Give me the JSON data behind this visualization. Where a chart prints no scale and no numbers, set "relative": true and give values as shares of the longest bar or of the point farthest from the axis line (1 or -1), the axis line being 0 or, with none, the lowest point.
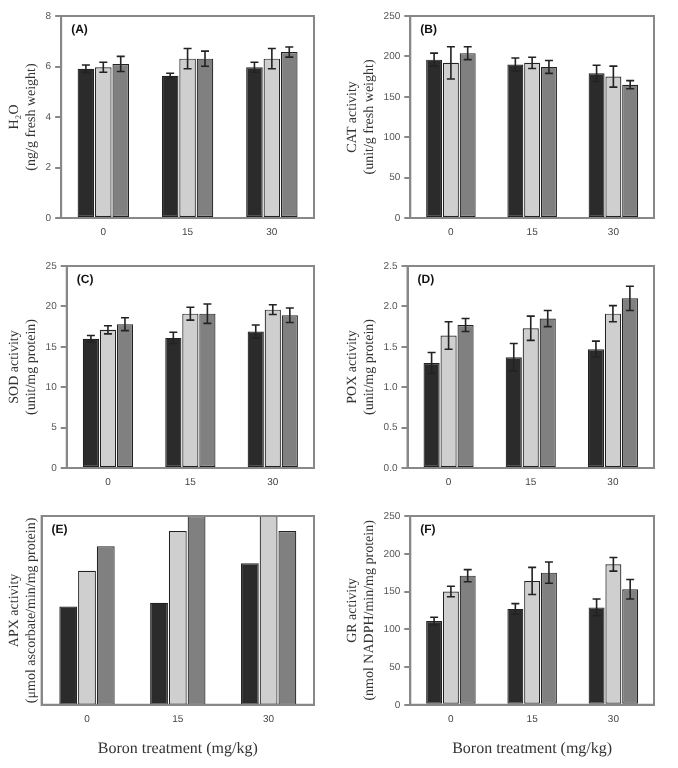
{
  "chart_data": [
    {
      "type": "bar",
      "ylabel": "H₂O\n(ng/g fresh weight)",
      "annotations": [
        "(A)"
      ],
      "categories": [
        "0",
        "15",
        "30"
      ],
      "ylim": [
        0,
        8
      ],
      "yticks": [
        0,
        2,
        4,
        6,
        8
      ],
      "grid": false,
      "legend": false,
      "series": [
        {
          "color": "#2b2b2b",
          "values": [
            5.91,
            5.63,
            5.97
          ],
          "errors": [
            0.15,
            0.1,
            0.2
          ]
        },
        {
          "color": "#cfcfcf",
          "values": [
            5.97,
            6.31,
            6.31
          ],
          "errors": [
            0.2,
            0.4,
            0.4
          ]
        },
        {
          "color": "#808080",
          "values": [
            6.1,
            6.31,
            6.57
          ],
          "errors": [
            0.3,
            0.3,
            0.2
          ]
        }
      ]
    },
    {
      "type": "bar",
      "ylabel": "CAT activity\n(unit/g fresh weight)",
      "annotations": [
        "(B)"
      ],
      "categories": [
        "0",
        "15",
        "30"
      ],
      "ylim": [
        0,
        250
      ],
      "yticks": [
        0,
        50,
        100,
        150,
        200,
        250
      ],
      "grid": false,
      "legend": false,
      "series": [
        {
          "color": "#2b2b2b",
          "values": [
            196,
            190,
            179
          ],
          "errors": [
            8,
            8,
            10
          ]
        },
        {
          "color": "#cfcfcf",
          "values": [
            192,
            192,
            175
          ],
          "errors": [
            20,
            7,
            13
          ]
        },
        {
          "color": "#808080",
          "values": [
            204,
            187,
            165
          ],
          "errors": [
            8,
            8,
            5
          ]
        }
      ]
    },
    {
      "type": "bar",
      "ylabel": "SOD activity\n(unit/mg protein)",
      "annotations": [
        "(C)"
      ],
      "categories": [
        "0",
        "15",
        "30"
      ],
      "ylim": [
        0,
        25
      ],
      "yticks": [
        0,
        5,
        10,
        15,
        20,
        25
      ],
      "grid": false,
      "legend": false,
      "series": [
        {
          "color": "#2b2b2b",
          "values": [
            16.0,
            16.1,
            16.9
          ],
          "errors": [
            0.4,
            0.7,
            0.8
          ]
        },
        {
          "color": "#cfcfcf",
          "values": [
            17.1,
            19.1,
            19.6
          ],
          "errors": [
            0.5,
            0.8,
            0.6
          ]
        },
        {
          "color": "#808080",
          "values": [
            17.8,
            19.1,
            18.9
          ],
          "errors": [
            0.8,
            1.2,
            0.9
          ]
        }
      ]
    },
    {
      "type": "bar",
      "ylabel": "POX activity\n(unit/mg protein)",
      "annotations": [
        "(D)"
      ],
      "categories": [
        "0",
        "15",
        "30"
      ],
      "ylim": [
        0,
        2.5
      ],
      "yticks": [
        {
          "value": 0,
          "label": "0.0"
        },
        0.5,
        {
          "value": 1,
          "label": "1.0"
        },
        1.5,
        {
          "value": 2,
          "label": "2.0"
        },
        2.5
      ],
      "grid": false,
      "legend": false,
      "series": [
        {
          "color": "#2b2b2b",
          "values": [
            1.3,
            1.37,
            1.47
          ],
          "errors": [
            0.13,
            0.17,
            0.1
          ]
        },
        {
          "color": "#cfcfcf",
          "values": [
            1.64,
            1.73,
            1.91
          ],
          "errors": [
            0.17,
            0.15,
            0.1
          ]
        },
        {
          "color": "#808080",
          "values": [
            1.77,
            1.85,
            2.1
          ],
          "errors": [
            0.08,
            0.1,
            0.15
          ]
        }
      ]
    },
    {
      "type": "bar",
      "relative": true,
      "xlabel": "Boron treatment (mg/kg)",
      "ylabel": "APX activity\n(μmol ascorbate/min/mg protein)",
      "annotations": [
        "(E)"
      ],
      "categories": [
        "0",
        "15",
        "30"
      ],
      "grid": false,
      "legend": false,
      "series": [
        {
          "color": "#2b2b2b",
          "values": [
            0.52,
            0.54,
            0.75
          ]
        },
        {
          "color": "#cfcfcf",
          "values": [
            0.71,
            0.92,
            1.0
          ]
        },
        {
          "color": "#808080",
          "values": [
            0.84,
            1.0,
            0.92
          ]
        }
      ]
    },
    {
      "type": "bar",
      "xlabel": "Boron treatment (mg/kg)",
      "ylabel": "GR activity\n(nmol NADPH/min/mg protein)",
      "annotations": [
        "(F)"
      ],
      "categories": [
        "0",
        "15",
        "30"
      ],
      "ylim": [
        0,
        250
      ],
      "yticks": [
        0,
        50,
        100,
        150,
        200,
        250
      ],
      "grid": false,
      "legend": false,
      "series": [
        {
          "color": "#2b2b2b",
          "values": [
            111,
            127,
            129
          ],
          "errors": [
            5,
            7,
            11
          ]
        },
        {
          "color": "#cfcfcf",
          "values": [
            150,
            164,
            186
          ],
          "errors": [
            7,
            18,
            9
          ]
        },
        {
          "color": "#808080",
          "values": [
            171,
            175,
            153
          ],
          "errors": [
            8,
            14,
            13
          ]
        }
      ]
    }
  ]
}
